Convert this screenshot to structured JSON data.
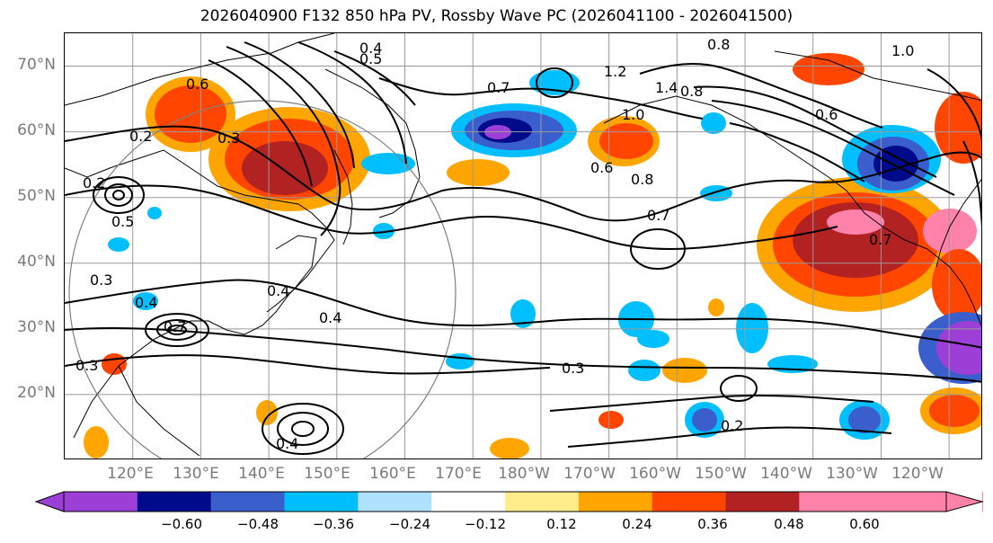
{
  "title": "2026040900 F132 850 hPa PV, Rossby Wave PC (2026041100 - 2026041500)",
  "latitude_labels": [
    "70°N",
    "60°N",
    "50°N",
    "40°N",
    "30°N",
    "20°N"
  ],
  "longitude_labels": [
    "120°E",
    "130°E",
    "140°E",
    "150°E",
    "160°E",
    "170°E",
    "180°W",
    "170°W",
    "160°W",
    "150°W",
    "140°W",
    "130°W",
    "120°W"
  ],
  "colorbar": {
    "ticks": [
      "−0.60",
      "−0.48",
      "−0.36",
      "−0.24",
      "−0.12",
      "0.12",
      "0.24",
      "0.36",
      "0.48",
      "0.60"
    ],
    "colors": [
      "#9b3fd6",
      "#000b8c",
      "#3a5fcd",
      "#00bfff",
      "#b0e2ff",
      "#ffffff",
      "#ffec8b",
      "#ffa500",
      "#ff4500",
      "#b22222",
      "#ff82ab",
      "#ff82ab"
    ],
    "under_color": "#9b3fd6",
    "over_color": "#ff82ab"
  },
  "contour_labels": [
    "0.8",
    "0.4",
    "0.5",
    "0.2",
    "0.3",
    "0.6",
    "0.7",
    "1.2",
    "1.0",
    "1.4",
    "0.2",
    "0.3",
    "0.4",
    "0.4",
    "0.4",
    "0.5",
    "0.4",
    "0.3",
    "0.3",
    "0.2",
    "0.7",
    "0.8",
    "0.6",
    "0.7",
    "0.8",
    "1.0",
    "0.6",
    "0.7"
  ],
  "chart_data": {
    "type": "heatmap",
    "title": "2026040900 F132 850 hPa PV, Rossby Wave PC (2026041100 - 2026041500)",
    "field_shaded": "Rossby Wave PC",
    "field_contoured": "850 hPa PV",
    "lat_range": [
      10,
      75
    ],
    "lon_range": [
      110,
      245
    ],
    "shading_levels": [
      -0.6,
      -0.48,
      -0.36,
      -0.24,
      -0.12,
      0.12,
      0.24,
      0.36,
      0.48,
      0.6
    ],
    "contour_levels": [
      0.2,
      0.3,
      0.4,
      0.5,
      0.6,
      0.7,
      0.8,
      1.0,
      1.2,
      1.4
    ]
  }
}
